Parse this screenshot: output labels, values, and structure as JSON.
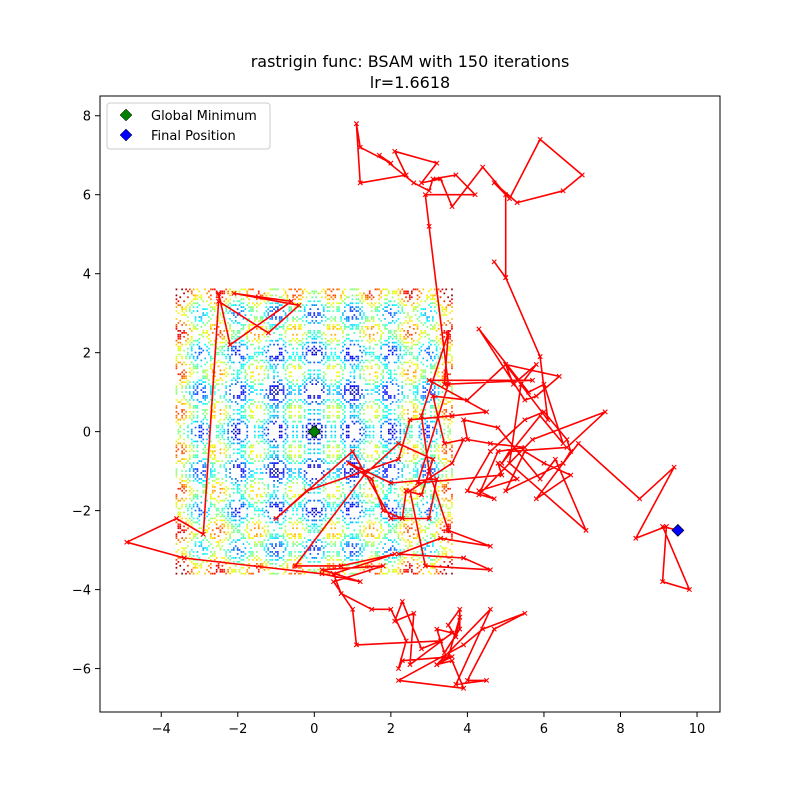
{
  "chart_data": {
    "type": "line",
    "title": "rastrigin func: BSAM with 150 iterations",
    "subtitle": "lr=1.6618",
    "xlabel": "",
    "ylabel": "",
    "xlim": [
      -5.6,
      10.6
    ],
    "ylim": [
      -7.1,
      8.5
    ],
    "xticks": [
      -4,
      -2,
      0,
      2,
      4,
      6,
      8,
      10
    ],
    "yticks": [
      -6,
      -4,
      -2,
      0,
      2,
      4,
      6,
      8
    ],
    "grid": false,
    "legend": {
      "placement": "top-left",
      "entries": [
        {
          "label": "Global Minimum",
          "color": "#008000",
          "marker": "diamond"
        },
        {
          "label": "Final Position",
          "color": "#0000ff",
          "marker": "diamond"
        }
      ]
    },
    "contour": {
      "function": "rastrigin",
      "x_range": [
        -3.6,
        3.6
      ],
      "y_range": [
        -3.6,
        3.6
      ],
      "colormap": "jet"
    },
    "global_minimum": {
      "x": 0,
      "y": 0
    },
    "final_position": {
      "x": 9.5,
      "y": -2.5
    },
    "series": [
      {
        "type": "path",
        "color": "#ff0000",
        "marker": "x",
        "points": [
          [
            -2.5,
            3.5
          ],
          [
            -2.2,
            2.2
          ],
          [
            -0.6,
            3.3
          ],
          [
            -2.1,
            3.5
          ],
          [
            -0.4,
            3.2
          ],
          [
            -1.2,
            2.5
          ],
          [
            -2.5,
            3.3
          ],
          [
            -2.9,
            -2.6
          ],
          [
            -3.6,
            -2.2
          ],
          [
            -4.9,
            -2.8
          ],
          [
            -3.4,
            -3.2
          ],
          [
            0.2,
            -3.6
          ],
          [
            1.2,
            -3.8
          ],
          [
            0.2,
            -3.5
          ],
          [
            1.8,
            -3.4
          ],
          [
            0.5,
            -3.8
          ],
          [
            1.0,
            -4.5
          ],
          [
            1.1,
            -5.4
          ],
          [
            3.3,
            -5.3
          ],
          [
            2.8,
            -5.5
          ],
          [
            2.3,
            -4.3
          ],
          [
            2.1,
            -4.8
          ],
          [
            2.6,
            -4.6
          ],
          [
            2.5,
            -5.9
          ],
          [
            3.6,
            -5.1
          ],
          [
            3.2,
            -5.0
          ],
          [
            3.3,
            -5.3
          ],
          [
            3.4,
            -5.6
          ],
          [
            3.8,
            -5.0
          ],
          [
            3.8,
            -4.5
          ],
          [
            3.5,
            -4.9
          ],
          [
            3.7,
            -5.2
          ],
          [
            3.8,
            -4.7
          ],
          [
            3.5,
            -5.7
          ],
          [
            3.2,
            -5.9
          ],
          [
            4.6,
            -4.5
          ],
          [
            3.7,
            -6.4
          ],
          [
            4.5,
            -6.3
          ],
          [
            4.0,
            -6.3
          ],
          [
            4.7,
            -5.0
          ],
          [
            5.5,
            -4.6
          ],
          [
            4.4,
            -5.0
          ],
          [
            3.9,
            -5.4
          ],
          [
            2.2,
            -6.3
          ],
          [
            3.9,
            -6.5
          ],
          [
            3.6,
            -5.8
          ],
          [
            3.2,
            -5.9
          ],
          [
            3.6,
            -5.7
          ],
          [
            2.3,
            -5.8
          ],
          [
            2.2,
            -6.0
          ],
          [
            2.4,
            -5.3
          ],
          [
            2.0,
            -4.5
          ],
          [
            1.5,
            -4.5
          ],
          [
            0.7,
            -4.1
          ],
          [
            0.5,
            -3.6
          ],
          [
            2.1,
            -3.1
          ],
          [
            0.7,
            -3.4
          ],
          [
            -0.5,
            -3.4
          ],
          [
            1.3,
            -1.1
          ],
          [
            2.2,
            -0.3
          ],
          [
            3.1,
            -0.7
          ],
          [
            2.8,
            -1.6
          ],
          [
            2.4,
            -1.5
          ],
          [
            2.3,
            -2.2
          ],
          [
            1.8,
            -2.0
          ],
          [
            1.5,
            -1.2
          ],
          [
            0.9,
            -0.8
          ],
          [
            2.0,
            -1.3
          ],
          [
            3.2,
            -1.2
          ],
          [
            3.0,
            -2.2
          ],
          [
            2.0,
            -2.2
          ],
          [
            1.0,
            -0.5
          ],
          [
            -1.0,
            -2.2
          ],
          [
            -0.2,
            -1.5
          ],
          [
            2.2,
            -0.7
          ],
          [
            2.5,
            0.3
          ],
          [
            3.6,
            0.4
          ],
          [
            4.5,
            0.5
          ],
          [
            3.0,
            1.3
          ],
          [
            5.7,
            1.3
          ],
          [
            3.4,
            1.2
          ],
          [
            3.5,
            2.5
          ],
          [
            2.8,
            0.4
          ],
          [
            3.0,
            -1.0
          ],
          [
            3.5,
            -2.5
          ],
          [
            4.6,
            -2.9
          ],
          [
            3.3,
            -2.7
          ],
          [
            2.2,
            -3.1
          ],
          [
            3.9,
            -3.2
          ],
          [
            4.6,
            -3.5
          ],
          [
            2.9,
            -3.4
          ],
          [
            2.5,
            -1.5
          ],
          [
            3.6,
            -0.8
          ],
          [
            3.9,
            -0.2
          ],
          [
            3.4,
            -0.3
          ],
          [
            3.1,
            0.9
          ],
          [
            4.0,
            0.8
          ],
          [
            5.0,
            1.7
          ],
          [
            6.4,
            1.4
          ],
          [
            5.8,
            0.9
          ],
          [
            5.5,
            0.8
          ],
          [
            4.3,
            2.6
          ],
          [
            5.6,
            1.0
          ],
          [
            6.0,
            1.2
          ],
          [
            6.5,
            -0.3
          ],
          [
            5.9,
            0.4
          ],
          [
            4.9,
            -0.8
          ],
          [
            5.1,
            -0.5
          ],
          [
            6.6,
            -0.4
          ],
          [
            7.6,
            0.5
          ],
          [
            5.7,
            -0.2
          ],
          [
            4.3,
            -1.6
          ],
          [
            4.8,
            -0.5
          ],
          [
            5.5,
            -0.4
          ],
          [
            4.6,
            -0.3
          ],
          [
            4.0,
            -0.2
          ],
          [
            3.9,
            0.3
          ],
          [
            4.8,
            0.1
          ],
          [
            5.9,
            -1.2
          ],
          [
            6.3,
            -0.7
          ],
          [
            7.1,
            -2.5
          ],
          [
            5.1,
            -0.8
          ],
          [
            5.4,
            1.2
          ],
          [
            5.8,
            1.7
          ],
          [
            5.2,
            1.2
          ],
          [
            5.0,
            1.7
          ],
          [
            6.1,
            0.3
          ],
          [
            5.9,
            1.9
          ],
          [
            5.0,
            3.9
          ],
          [
            4.7,
            4.3
          ],
          [
            5.0,
            3.9
          ],
          [
            5.0,
            6.0
          ],
          [
            4.7,
            6.3
          ],
          [
            5.3,
            5.8
          ],
          [
            6.5,
            6.1
          ],
          [
            7.0,
            6.5
          ],
          [
            5.9,
            7.4
          ],
          [
            5.1,
            5.9
          ],
          [
            4.4,
            6.7
          ],
          [
            3.6,
            5.7
          ],
          [
            3.3,
            6.4
          ],
          [
            2.8,
            6.3
          ],
          [
            3.2,
            6.8
          ],
          [
            2.1,
            7.1
          ],
          [
            2.4,
            6.5
          ],
          [
            1.2,
            6.3
          ],
          [
            1.1,
            7.8
          ],
          [
            1.2,
            7.2
          ],
          [
            2.0,
            6.8
          ],
          [
            1.7,
            7.0
          ],
          [
            2.6,
            6.3
          ],
          [
            3.0,
            6.1
          ],
          [
            3.1,
            6.4
          ],
          [
            3.7,
            6.5
          ],
          [
            4.2,
            6.0
          ],
          [
            2.9,
            6.0
          ],
          [
            3.0,
            5.2
          ],
          [
            3.5,
            1.2
          ],
          [
            2.7,
            -1.3
          ],
          [
            4.9,
            -1.1
          ],
          [
            4.8,
            -0.8
          ],
          [
            5.3,
            -1.2
          ],
          [
            4.3,
            -1.5
          ],
          [
            4.7,
            -1.7
          ],
          [
            4.0,
            -1.5
          ],
          [
            4.6,
            -0.5
          ],
          [
            5.5,
            0.3
          ],
          [
            6.0,
            0.5
          ],
          [
            6.6,
            -0.2
          ],
          [
            6.7,
            -0.5
          ],
          [
            6.5,
            -0.8
          ],
          [
            5.8,
            -1.7
          ],
          [
            6.7,
            -1.1
          ],
          [
            6.0,
            -0.8
          ],
          [
            5.5,
            -0.5
          ],
          [
            5.0,
            -1.5
          ],
          [
            6.5,
            -0.8
          ],
          [
            6.9,
            -0.3
          ],
          [
            8.5,
            -1.7
          ],
          [
            9.4,
            -0.9
          ],
          [
            8.4,
            -2.7
          ],
          [
            9.2,
            -2.4
          ],
          [
            9.1,
            -3.8
          ],
          [
            9.8,
            -4.0
          ],
          [
            9.1,
            -2.4
          ],
          [
            9.5,
            -2.5
          ]
        ]
      }
    ]
  }
}
